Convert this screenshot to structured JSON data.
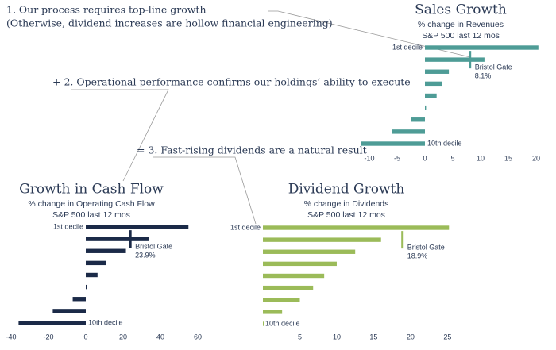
{
  "notes": [
    "1. Our process requires top-line growth",
    "(Otherwise, dividend increases are hollow financial engineering)",
    "+ 2. Operational performance confirms our holdings’ ability to execute",
    "= 3. Fast-rising dividends are a natural result"
  ],
  "chart_data": [
    {
      "type": "hbar",
      "title": "Sales Growth",
      "subtitle": [
        "% change in Revenues",
        "S&P 500 last 12 mos"
      ],
      "categories": [
        "1st decile",
        null,
        null,
        null,
        null,
        null,
        null,
        null,
        "10th decile"
      ],
      "values": [
        20.4,
        10.7,
        4.3,
        3.0,
        2.1,
        0.2,
        -2.5,
        -6.0,
        -11.5
      ],
      "color": "#4e9c96",
      "xlim": [
        -11,
        21
      ],
      "xticks": [
        -10,
        -5,
        0,
        5,
        10,
        15,
        20
      ],
      "benchmark": {
        "name": "Bristol Gate",
        "value": 8.1,
        "label": "8.1%"
      }
    },
    {
      "type": "hbar",
      "title": "Growth in Cash Flow",
      "subtitle": [
        "% change in Operating Cash Flow",
        "S&P 500 last 12 mos"
      ],
      "categories": [
        "1st decile",
        null,
        null,
        null,
        null,
        null,
        null,
        null,
        "10th decile"
      ],
      "values": [
        55,
        34,
        21.5,
        11,
        6.3,
        0.8,
        -7,
        -17.7,
        -36
      ],
      "color": "#1b2a48",
      "xlim": [
        -40,
        60
      ],
      "xticks": [
        -40,
        -20,
        0,
        20,
        40,
        60
      ],
      "benchmark": {
        "name": "Bristol Gate",
        "value": 23.9,
        "label": "23.9%"
      }
    },
    {
      "type": "hbar",
      "title": "Dividend Growth",
      "subtitle": [
        "% change in Dividends",
        "S&P 500 last 12 mos"
      ],
      "categories": [
        "1st decile",
        null,
        null,
        null,
        null,
        null,
        null,
        null,
        "10th decile"
      ],
      "values": [
        25.2,
        16,
        12.5,
        10,
        8.3,
        6.8,
        5,
        2.6,
        0.2
      ],
      "color": "#9bbb59",
      "xlim": [
        0,
        27
      ],
      "xticks": [
        5,
        10,
        15,
        20,
        25
      ],
      "benchmark": {
        "name": "Bristol Gate",
        "value": 18.9,
        "label": "18.9%"
      }
    }
  ]
}
